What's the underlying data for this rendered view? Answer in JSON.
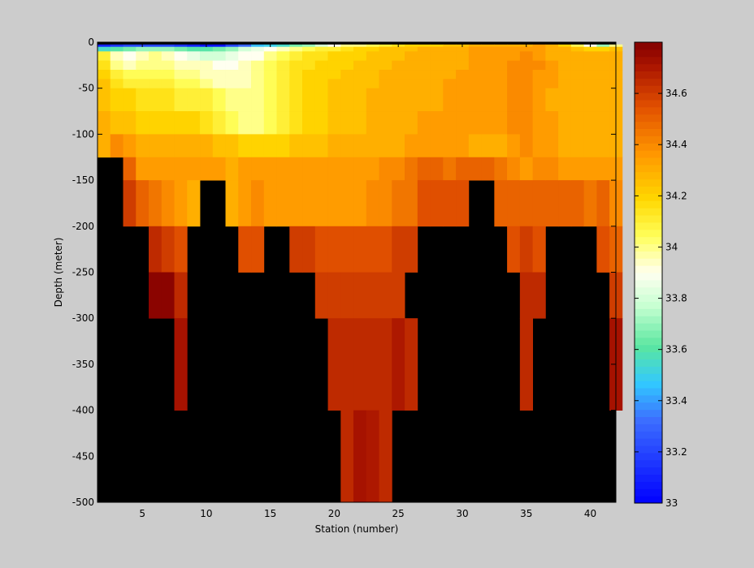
{
  "chart_data": {
    "type": "heatmap",
    "title": "",
    "xlabel": "Station (number)",
    "ylabel": "Depth (meter)",
    "xlim": [
      1.5,
      42.0
    ],
    "ylim": [
      -500,
      0
    ],
    "xticks": [
      5,
      10,
      15,
      20,
      25,
      30,
      35,
      40
    ],
    "yticks": [
      0,
      -50,
      -100,
      -150,
      -200,
      -250,
      -300,
      -350,
      -400,
      -450,
      -500
    ],
    "colorbar": {
      "min": 33.0,
      "max": 34.8,
      "ticks": [
        33,
        33.2,
        33.4,
        33.6,
        33.8,
        34,
        34.2,
        34.4,
        34.6
      ],
      "tick_labels": [
        "33",
        "33.2",
        "33.4",
        "33.6",
        "33.8",
        "34",
        "34.2",
        "34.4",
        "34.6"
      ],
      "colormap": "jet-like: blue-cyan-green-white-yellow-orange-darkred"
    },
    "nodata_color": "#000000",
    "background_color": "#cccccc",
    "stations": [
      2,
      3,
      4,
      5,
      6,
      7,
      8,
      9,
      10,
      11,
      12,
      13,
      14,
      15,
      16,
      17,
      18,
      19,
      20,
      21,
      22,
      23,
      24,
      25,
      26,
      27,
      28,
      29,
      30,
      31,
      32,
      33,
      34,
      35,
      36,
      37,
      38,
      39,
      40,
      41,
      42
    ],
    "depth_edges": [
      -5,
      -10,
      -20,
      -30,
      -40,
      -50,
      -75,
      -100,
      -125,
      -150,
      -200,
      -250,
      -300,
      -400,
      -500
    ],
    "bottom_depths": [
      125,
      125,
      150,
      200,
      300,
      400,
      400,
      200,
      150,
      150,
      250,
      250,
      250,
      200,
      250,
      250,
      300,
      400,
      400,
      500,
      500,
      500,
      500,
      400,
      250,
      200,
      200,
      200,
      200,
      150,
      150,
      200,
      250,
      400,
      300,
      200,
      200,
      200,
      200,
      250,
      400
    ],
    "salinity_profile_layers": [
      {
        "depth_top": 0,
        "depth_bottom": -5,
        "values": [
          33.1,
          33.15,
          33.2,
          33.2,
          33.2,
          33.2,
          33.15,
          33.1,
          33.05,
          33.05,
          33.2,
          33.3,
          33.45,
          33.5,
          33.55,
          33.65,
          33.7,
          33.8,
          33.9,
          34.0,
          34.0,
          34.05,
          34.1,
          34.15,
          34.2,
          34.2,
          34.2,
          34.25,
          34.25,
          34.3,
          34.3,
          34.3,
          34.3,
          34.3,
          34.35,
          34.3,
          34.2,
          34.05,
          33.9,
          33.7,
          34.0
        ]
      },
      {
        "depth_top": -5,
        "depth_bottom": -10,
        "values": [
          33.55,
          33.6,
          33.65,
          33.7,
          33.7,
          33.7,
          33.65,
          33.6,
          33.6,
          33.65,
          33.7,
          33.8,
          33.85,
          33.9,
          33.95,
          34.0,
          34.05,
          34.1,
          34.1,
          34.15,
          34.2,
          34.2,
          34.25,
          34.25,
          34.25,
          34.3,
          34.3,
          34.3,
          34.3,
          34.35,
          34.35,
          34.35,
          34.35,
          34.35,
          34.35,
          34.3,
          34.3,
          34.25,
          34.2,
          34.2,
          34.25
        ]
      },
      {
        "depth_top": -10,
        "depth_bottom": -20,
        "values": [
          34.1,
          33.95,
          33.9,
          33.95,
          34.0,
          33.95,
          33.9,
          33.85,
          33.8,
          33.8,
          33.85,
          33.9,
          33.9,
          34.0,
          34.05,
          34.1,
          34.15,
          34.15,
          34.2,
          34.2,
          34.2,
          34.25,
          34.25,
          34.25,
          34.3,
          34.3,
          34.3,
          34.3,
          34.3,
          34.35,
          34.35,
          34.35,
          34.35,
          34.4,
          34.35,
          34.3,
          34.3,
          34.3,
          34.3,
          34.3,
          34.3
        ]
      },
      {
        "depth_top": -20,
        "depth_bottom": -30,
        "values": [
          34.15,
          34.0,
          33.95,
          34.0,
          34.0,
          34.0,
          33.95,
          33.95,
          33.95,
          33.9,
          33.9,
          33.95,
          34.0,
          34.05,
          34.1,
          34.15,
          34.15,
          34.2,
          34.2,
          34.2,
          34.25,
          34.25,
          34.25,
          34.3,
          34.3,
          34.3,
          34.3,
          34.3,
          34.3,
          34.35,
          34.35,
          34.35,
          34.4,
          34.4,
          34.4,
          34.35,
          34.3,
          34.3,
          34.3,
          34.3,
          34.3
        ]
      },
      {
        "depth_top": -30,
        "depth_bottom": -40,
        "values": [
          34.2,
          34.1,
          34.05,
          34.05,
          34.05,
          34.05,
          34.0,
          34.0,
          33.95,
          33.95,
          33.95,
          33.95,
          34.0,
          34.05,
          34.1,
          34.15,
          34.2,
          34.2,
          34.2,
          34.25,
          34.25,
          34.25,
          34.3,
          34.3,
          34.3,
          34.3,
          34.3,
          34.3,
          34.35,
          34.35,
          34.35,
          34.35,
          34.4,
          34.4,
          34.35,
          34.35,
          34.3,
          34.3,
          34.3,
          34.3,
          34.3
        ]
      },
      {
        "depth_top": -40,
        "depth_bottom": -50,
        "values": [
          34.25,
          34.15,
          34.1,
          34.1,
          34.1,
          34.1,
          34.05,
          34.05,
          34.0,
          33.95,
          33.95,
          33.95,
          34.0,
          34.05,
          34.1,
          34.15,
          34.2,
          34.2,
          34.25,
          34.25,
          34.25,
          34.25,
          34.3,
          34.3,
          34.3,
          34.3,
          34.3,
          34.35,
          34.35,
          34.35,
          34.35,
          34.35,
          34.4,
          34.4,
          34.35,
          34.35,
          34.3,
          34.3,
          34.3,
          34.3,
          34.3
        ]
      },
      {
        "depth_top": -50,
        "depth_bottom": -75,
        "values": [
          34.25,
          34.2,
          34.2,
          34.15,
          34.15,
          34.15,
          34.1,
          34.1,
          34.1,
          34.05,
          34.0,
          34.0,
          34.0,
          34.05,
          34.1,
          34.15,
          34.2,
          34.2,
          34.25,
          34.25,
          34.25,
          34.3,
          34.3,
          34.3,
          34.3,
          34.3,
          34.3,
          34.35,
          34.35,
          34.35,
          34.35,
          34.35,
          34.4,
          34.4,
          34.35,
          34.3,
          34.3,
          34.3,
          34.3,
          34.3,
          34.3
        ]
      },
      {
        "depth_top": -75,
        "depth_bottom": -100,
        "values": [
          34.3,
          34.25,
          34.25,
          34.2,
          34.2,
          34.2,
          34.2,
          34.2,
          34.15,
          34.1,
          34.05,
          34.0,
          34.0,
          34.05,
          34.1,
          34.15,
          34.2,
          34.2,
          34.25,
          34.25,
          34.25,
          34.3,
          34.3,
          34.3,
          34.3,
          34.35,
          34.35,
          34.35,
          34.35,
          34.35,
          34.35,
          34.35,
          34.4,
          34.4,
          34.35,
          34.35,
          34.3,
          34.3,
          34.3,
          34.3,
          34.3
        ]
      },
      {
        "depth_top": -100,
        "depth_bottom": -125,
        "values": [
          34.3,
          34.4,
          34.35,
          34.3,
          34.3,
          34.3,
          34.3,
          34.3,
          34.3,
          34.25,
          34.25,
          34.2,
          34.2,
          34.2,
          34.2,
          34.25,
          34.25,
          34.25,
          34.3,
          34.3,
          34.3,
          34.3,
          34.3,
          34.3,
          34.35,
          34.35,
          34.35,
          34.35,
          34.35,
          34.3,
          34.3,
          34.3,
          34.35,
          34.4,
          34.35,
          34.35,
          34.3,
          34.3,
          34.3,
          34.3,
          34.3
        ]
      },
      {
        "depth_top": -125,
        "depth_bottom": -150,
        "values": [
          null,
          null,
          34.5,
          34.35,
          34.35,
          34.35,
          34.35,
          34.35,
          34.35,
          34.35,
          34.3,
          34.35,
          34.35,
          34.35,
          34.35,
          34.35,
          34.35,
          34.35,
          34.35,
          34.35,
          34.35,
          34.35,
          34.4,
          34.4,
          34.45,
          34.5,
          34.5,
          34.45,
          34.5,
          34.5,
          34.5,
          34.45,
          34.4,
          34.35,
          34.4,
          34.4,
          34.35,
          34.35,
          34.35,
          34.35,
          34.35
        ]
      },
      {
        "depth_top": -150,
        "depth_bottom": -200,
        "values": [
          null,
          null,
          34.6,
          34.5,
          34.45,
          34.4,
          34.35,
          34.3,
          null,
          null,
          34.3,
          34.35,
          34.4,
          34.35,
          34.35,
          34.35,
          34.35,
          34.35,
          34.35,
          34.35,
          34.35,
          34.4,
          34.4,
          34.45,
          34.45,
          34.55,
          34.55,
          34.55,
          34.55,
          null,
          null,
          34.5,
          34.5,
          34.5,
          34.5,
          34.5,
          34.5,
          34.5,
          34.45,
          34.5,
          34.4
        ]
      },
      {
        "depth_top": -200,
        "depth_bottom": -250,
        "values": [
          null,
          null,
          null,
          null,
          34.65,
          34.6,
          34.55,
          null,
          null,
          null,
          null,
          34.55,
          34.55,
          null,
          null,
          34.6,
          34.6,
          34.55,
          34.55,
          34.55,
          34.55,
          34.55,
          34.55,
          34.6,
          34.6,
          null,
          null,
          null,
          null,
          null,
          null,
          null,
          34.55,
          34.6,
          34.55,
          null,
          null,
          null,
          null,
          34.55,
          34.5
        ]
      },
      {
        "depth_top": -250,
        "depth_bottom": -300,
        "values": [
          null,
          null,
          null,
          null,
          34.78,
          34.78,
          34.65,
          null,
          null,
          null,
          null,
          null,
          null,
          null,
          null,
          null,
          null,
          34.6,
          34.6,
          34.6,
          34.6,
          34.6,
          34.6,
          34.6,
          null,
          null,
          null,
          null,
          null,
          null,
          null,
          null,
          null,
          34.65,
          34.65,
          null,
          null,
          null,
          null,
          null,
          34.6
        ]
      },
      {
        "depth_top": -300,
        "depth_bottom": -400,
        "values": [
          null,
          null,
          null,
          null,
          null,
          null,
          34.72,
          null,
          null,
          null,
          null,
          null,
          null,
          null,
          null,
          null,
          null,
          null,
          34.65,
          34.65,
          34.65,
          34.65,
          34.65,
          34.7,
          34.65,
          null,
          null,
          null,
          null,
          null,
          null,
          null,
          null,
          34.65,
          null,
          null,
          null,
          null,
          null,
          null,
          34.72
        ]
      },
      {
        "depth_top": -400,
        "depth_bottom": -500,
        "values": [
          null,
          null,
          null,
          null,
          null,
          null,
          null,
          null,
          null,
          null,
          null,
          null,
          null,
          null,
          null,
          null,
          null,
          null,
          null,
          34.65,
          34.72,
          34.7,
          34.65,
          null,
          null,
          null,
          null,
          null,
          null,
          null,
          null,
          null,
          null,
          null,
          null,
          null,
          null,
          null,
          null,
          null,
          null
        ]
      }
    ]
  }
}
